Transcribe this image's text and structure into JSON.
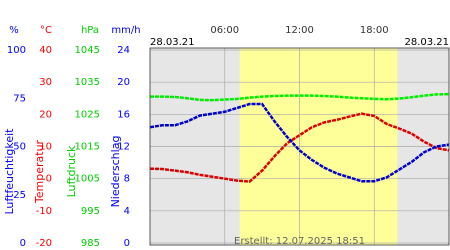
{
  "chart_data": {
    "type": "line",
    "date_left": "28.03.21",
    "date_right": "28.03.21",
    "created": "Erstellt: 12.07.2025 18:51",
    "xlim": [
      0,
      24
    ],
    "xticks": [
      {
        "value": 6,
        "label": "06:00"
      },
      {
        "value": 12,
        "label": "12:00"
      },
      {
        "value": 18,
        "label": "18:00"
      }
    ],
    "daylight": [
      7.2,
      19.85
    ],
    "grid": true,
    "axes": [
      {
        "unit": "%",
        "title": "Luftfeuchtigkeit",
        "color": "#0000ff",
        "lim": [
          0,
          100
        ],
        "ticks": [
          0,
          25,
          50,
          75,
          100
        ]
      },
      {
        "unit": "°C",
        "title": "Temperatur",
        "color": "#ff0000",
        "lim": [
          -20,
          40
        ],
        "ticks": [
          -20,
          -10,
          0,
          10,
          20,
          30,
          40
        ]
      },
      {
        "unit": "hPa",
        "title": "Luftdruck",
        "color": "#00cc00",
        "lim": [
          985,
          1045
        ],
        "ticks": [
          985,
          995,
          1005,
          1015,
          1025,
          1035,
          1045
        ]
      },
      {
        "unit": "mm/h",
        "title": "Niederschlag",
        "color": "#0000ff",
        "lim": [
          0,
          24
        ],
        "ticks": [
          0,
          4,
          8,
          12,
          16,
          20,
          24
        ]
      }
    ],
    "x": [
      0,
      1,
      2,
      3,
      4,
      5,
      6,
      7,
      8,
      9,
      10,
      11,
      12,
      13,
      14,
      15,
      16,
      17,
      18,
      19,
      20,
      21,
      22,
      23,
      24
    ],
    "series": [
      {
        "axis": 2,
        "color": "#00ee00",
        "values": [
          1030.5,
          1030.5,
          1030.4,
          1030,
          1029.5,
          1029.4,
          1029.6,
          1029.8,
          1030.2,
          1030.5,
          1030.7,
          1030.8,
          1030.8,
          1030.8,
          1030.7,
          1030.5,
          1030.2,
          1030,
          1029.8,
          1029.7,
          1029.9,
          1030.3,
          1030.8,
          1031.2,
          1031.3
        ]
      },
      {
        "axis": 1,
        "color": "#dd0000",
        "values": [
          3.1,
          3,
          2.5,
          2,
          1.2,
          0.6,
          0,
          -0.6,
          -0.9,
          2.5,
          7,
          11,
          13.5,
          16,
          17.5,
          18.3,
          19.3,
          20.2,
          19.5,
          17,
          15.6,
          14,
          11.5,
          9.5,
          8.8
        ]
      },
      {
        "axis": 0,
        "color": "#0000cc",
        "values": [
          60,
          61,
          61,
          63,
          66,
          67,
          68,
          70,
          72,
          72,
          63,
          55,
          48,
          43,
          39,
          36,
          34,
          32,
          32,
          34,
          38,
          42,
          47,
          50,
          51
        ]
      }
    ]
  }
}
